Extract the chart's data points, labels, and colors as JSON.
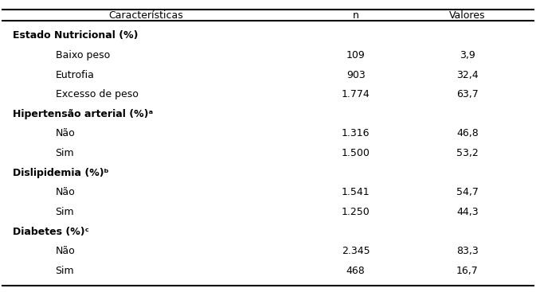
{
  "header": [
    "Características",
    "n",
    "Valores"
  ],
  "rows": [
    {
      "label": "Estado Nutricional (%)",
      "n": "",
      "val": "",
      "bold": true,
      "indent": false
    },
    {
      "label": "Baixo peso",
      "n": "109",
      "val": "3,9",
      "bold": false,
      "indent": true
    },
    {
      "label": "Eutrofia",
      "n": "903",
      "val": "32,4",
      "bold": false,
      "indent": true
    },
    {
      "label": "Excesso de peso",
      "n": "1.774",
      "val": "63,7",
      "bold": false,
      "indent": true
    },
    {
      "label": "Hipertensão arterial (%)ᵃ",
      "n": "",
      "val": "",
      "bold": true,
      "indent": false
    },
    {
      "label": "Não",
      "n": "1.316",
      "val": "46,8",
      "bold": false,
      "indent": true
    },
    {
      "label": "Sim",
      "n": "1.500",
      "val": "53,2",
      "bold": false,
      "indent": true
    },
    {
      "label": "Dislipidemia (%)ᵇ",
      "n": "",
      "val": "",
      "bold": true,
      "indent": false
    },
    {
      "label": "Não",
      "n": "1.541",
      "val": "54,7",
      "bold": false,
      "indent": true
    },
    {
      "label": "Sim",
      "n": "1.250",
      "val": "44,3",
      "bold": false,
      "indent": true
    },
    {
      "label": "Diabetes (%)ᶜ",
      "n": "",
      "val": "",
      "bold": true,
      "indent": false
    },
    {
      "label": "Não",
      "n": "2.345",
      "val": "83,3",
      "bold": false,
      "indent": true
    },
    {
      "label": "Sim",
      "n": "468",
      "val": "16,7",
      "bold": false,
      "indent": true
    }
  ],
  "bg_color": "#ffffff",
  "text_color": "#000000",
  "header_fontsize": 9.0,
  "body_fontsize": 9.0,
  "fig_width": 6.73,
  "fig_height": 3.67
}
